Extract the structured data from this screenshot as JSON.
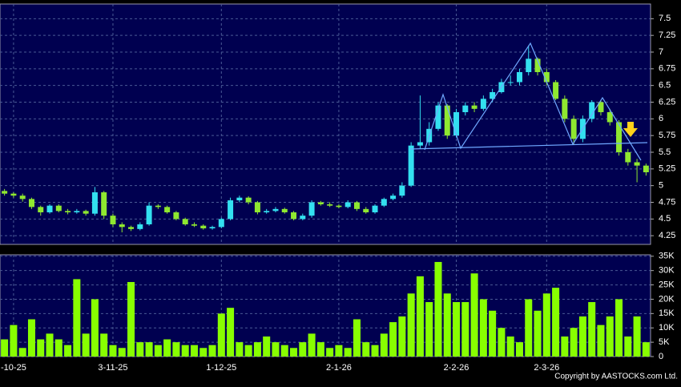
{
  "chart_data": {
    "type": "candlestick",
    "categories": [
      null,
      "-10-25",
      null,
      null,
      null,
      null,
      null,
      null,
      null,
      null,
      null,
      null,
      "3-11-25",
      null,
      null,
      null,
      null,
      null,
      null,
      null,
      null,
      null,
      null,
      null,
      "1-12-25",
      null,
      null,
      null,
      null,
      null,
      null,
      null,
      null,
      null,
      null,
      null,
      null,
      "2-1-26",
      null,
      null,
      null,
      null,
      null,
      null,
      null,
      null,
      null,
      null,
      null,
      null,
      "2-2-26",
      null,
      null,
      null,
      null,
      null,
      null,
      null,
      null,
      null,
      "2-3-26",
      null,
      null,
      null,
      null,
      null,
      null,
      null,
      null,
      null,
      null,
      null
    ],
    "open": [
      4.92,
      4.88,
      4.85,
      4.8,
      4.68,
      4.6,
      4.7,
      4.62,
      4.6,
      4.62,
      4.58,
      4.9,
      4.55,
      4.42,
      4.38,
      4.35,
      4.42,
      4.7,
      4.68,
      4.6,
      4.5,
      4.42,
      4.4,
      4.36,
      4.38,
      4.5,
      4.78,
      4.82,
      4.75,
      4.6,
      4.62,
      4.65,
      4.6,
      4.5,
      4.55,
      4.75,
      4.72,
      4.7,
      4.68,
      4.75,
      4.65,
      4.6,
      4.7,
      4.8,
      4.85,
      5.0,
      5.6,
      5.65,
      5.85,
      6.2,
      5.75,
      6.1,
      6.2,
      6.15,
      6.3,
      6.4,
      6.55,
      6.55,
      6.7,
      6.9,
      6.7,
      6.55,
      6.3,
      6.0,
      5.7,
      6.0,
      6.25,
      6.1,
      5.95,
      5.5,
      5.35,
      5.3
    ],
    "high": [
      4.95,
      4.9,
      4.88,
      4.82,
      4.7,
      4.72,
      4.72,
      4.65,
      4.65,
      4.64,
      4.98,
      4.92,
      4.58,
      4.45,
      4.4,
      4.45,
      4.75,
      4.72,
      4.7,
      4.62,
      4.52,
      4.45,
      4.42,
      4.4,
      4.52,
      4.82,
      4.85,
      4.84,
      4.77,
      4.65,
      4.68,
      4.67,
      4.62,
      4.58,
      4.78,
      4.77,
      4.75,
      4.72,
      4.78,
      4.77,
      4.68,
      4.72,
      4.82,
      4.88,
      5.05,
      5.65,
      6.35,
      5.95,
      6.25,
      6.22,
      6.15,
      6.25,
      6.25,
      6.35,
      6.45,
      6.6,
      6.65,
      6.75,
      7.1,
      6.92,
      6.75,
      6.58,
      6.35,
      6.05,
      6.05,
      6.28,
      6.28,
      6.15,
      5.98,
      5.55,
      5.4,
      5.33
    ],
    "low": [
      4.85,
      4.82,
      4.76,
      4.65,
      4.55,
      4.58,
      4.6,
      4.57,
      4.58,
      4.55,
      4.55,
      4.5,
      4.38,
      4.3,
      4.32,
      4.33,
      4.4,
      4.65,
      4.58,
      4.48,
      4.4,
      4.38,
      4.34,
      4.34,
      4.36,
      4.48,
      4.75,
      4.72,
      4.57,
      4.58,
      4.6,
      4.58,
      4.48,
      4.48,
      4.52,
      4.7,
      4.68,
      4.66,
      4.66,
      4.62,
      4.58,
      4.58,
      4.68,
      4.78,
      4.82,
      4.98,
      5.55,
      5.6,
      5.82,
      5.7,
      5.72,
      6.05,
      6.1,
      6.12,
      6.25,
      6.38,
      6.5,
      6.5,
      6.65,
      6.65,
      6.5,
      6.28,
      5.95,
      5.62,
      5.65,
      5.95,
      6.05,
      5.9,
      5.45,
      5.3,
      5.05,
      5.15
    ],
    "close": [
      4.88,
      4.85,
      4.8,
      4.68,
      4.6,
      4.7,
      4.62,
      4.6,
      4.62,
      4.58,
      4.9,
      4.55,
      4.42,
      4.38,
      4.35,
      4.42,
      4.7,
      4.68,
      4.6,
      4.5,
      4.42,
      4.4,
      4.36,
      4.38,
      4.5,
      4.78,
      4.82,
      4.75,
      4.6,
      4.62,
      4.65,
      4.6,
      4.5,
      4.55,
      4.75,
      4.72,
      4.7,
      4.68,
      4.75,
      4.65,
      4.6,
      4.7,
      4.8,
      4.85,
      5.0,
      5.6,
      5.65,
      5.85,
      6.2,
      5.75,
      6.1,
      6.2,
      6.15,
      6.3,
      6.4,
      6.55,
      6.55,
      6.7,
      6.9,
      6.7,
      6.55,
      6.3,
      6.0,
      5.7,
      6.0,
      6.25,
      6.1,
      5.95,
      5.5,
      5.35,
      5.3,
      5.2
    ],
    "volume": [
      6000,
      11000,
      3000,
      13000,
      6000,
      8000,
      6000,
      4000,
      27000,
      8000,
      20000,
      8000,
      4000,
      3000,
      26000,
      5000,
      5000,
      4000,
      6000,
      5000,
      4000,
      4000,
      3000,
      4000,
      15000,
      17000,
      5000,
      4000,
      5000,
      7000,
      5000,
      4000,
      3000,
      5000,
      8000,
      5000,
      3000,
      4000,
      3000,
      13000,
      5000,
      4000,
      8000,
      12000,
      14000,
      22000,
      28000,
      19000,
      33000,
      22000,
      19000,
      19000,
      29000,
      20000,
      16000,
      10000,
      7000,
      5000,
      20000,
      16000,
      22000,
      24000,
      7000,
      10000,
      14000,
      19000,
      11000,
      14000,
      20000,
      7000,
      14000,
      5000
    ],
    "ylim": [
      4.12,
      7.72
    ],
    "yticks": [
      4.25,
      4.5,
      4.75,
      5,
      5.25,
      5.5,
      5.75,
      6,
      6.25,
      6.5,
      6.75,
      7,
      7.25,
      7.5
    ],
    "volume_ylim": [
      0,
      35500
    ],
    "volume_yticks": [
      0,
      {
        "value": 5000,
        "label": "5K"
      },
      {
        "value": 10000,
        "label": "10K"
      },
      {
        "value": 15000,
        "label": "15K"
      },
      {
        "value": 20000,
        "label": "20K"
      },
      {
        "value": 25000,
        "label": "25K"
      },
      {
        "value": 30000,
        "label": "30K"
      },
      {
        "value": 35000,
        "label": "35K"
      }
    ],
    "up_color": "#33e0f0",
    "down_color": "#8fe830",
    "volume_color": "#88ff00",
    "grid": true
  },
  "footer": "Copyright by AASTOCKS.com Ltd."
}
